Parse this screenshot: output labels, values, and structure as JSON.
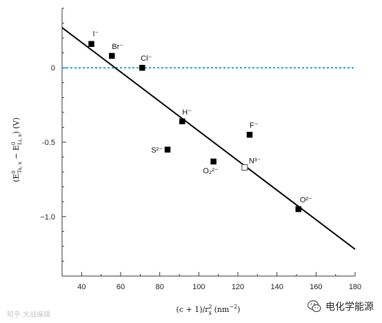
{
  "chart_data": {
    "type": "scatter",
    "xlabel": "(c + 1)/r",
    "xlabel_sub": "x",
    "xlabel_sup": "2",
    "xlabel_unit": "(nm",
    "xlabel_unit_sup": "−2",
    "xlabel_close": ")",
    "ylabel_parts": [
      "(E",
      "0",
      "Ta, x",
      " − E",
      "0",
      "Li, x",
      ") (V)"
    ],
    "xlim": [
      30,
      180
    ],
    "ylim": [
      -1.4,
      0.4
    ],
    "xticks": [
      40,
      60,
      80,
      100,
      120,
      140,
      160,
      180
    ],
    "yticks": [
      0,
      -0.5,
      -1.0
    ],
    "yticklabels": [
      "0",
      "-0.5",
      "−1.0"
    ],
    "points": [
      {
        "label": "I⁻",
        "x": 45,
        "y": 0.16,
        "marker": "filled-square"
      },
      {
        "label": "Br⁻",
        "x": 55.5,
        "y": 0.08,
        "marker": "filled-square"
      },
      {
        "label": "Cl⁻",
        "x": 71,
        "y": 0.0,
        "marker": "filled-square"
      },
      {
        "label": "H⁻",
        "x": 91.5,
        "y": -0.36,
        "marker": "filled-square"
      },
      {
        "label": "S²⁻",
        "x": 84,
        "y": -0.55,
        "marker": "filled-square"
      },
      {
        "label": "O₂²⁻",
        "x": 107.5,
        "y": -0.63,
        "marker": "filled-square"
      },
      {
        "label": "F⁻",
        "x": 126,
        "y": -0.45,
        "marker": "filled-square"
      },
      {
        "label": "N³⁻",
        "x": 123.5,
        "y": -0.67,
        "marker": "open-square"
      },
      {
        "label": "O²⁻",
        "x": 151,
        "y": -0.95,
        "marker": "filled-square"
      }
    ],
    "fit_line": {
      "x": [
        30,
        180
      ],
      "y": [
        0.27,
        -1.22
      ]
    },
    "reference_line": {
      "y": 0,
      "style": "dotted",
      "color": "#1a9fd0"
    },
    "grid": false
  },
  "watermarks": {
    "left": "知乎 大战编辑",
    "right": "电化学能源"
  }
}
